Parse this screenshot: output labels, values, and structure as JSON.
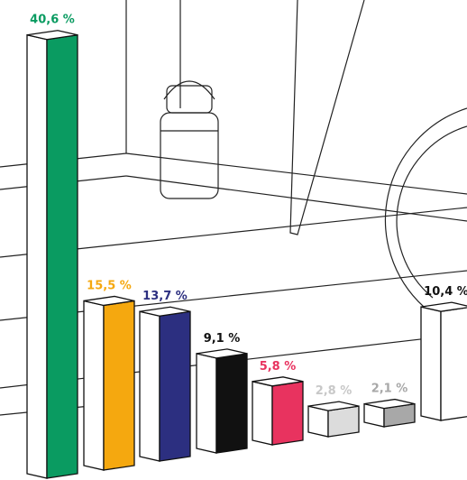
{
  "chart_data": {
    "type": "bar",
    "categories": [
      null,
      null,
      null,
      null,
      null,
      null,
      null,
      null
    ],
    "values": [
      40.6,
      15.5,
      13.7,
      9.1,
      5.8,
      2.8,
      2.1,
      10.4
    ],
    "value_labels": [
      "40,6 %",
      "15,5 %",
      "13,7 %",
      "9,1 %",
      "5,8 %",
      "2,8 %",
      "2,1 %",
      "10,4 %"
    ],
    "colors": [
      "#0a9b61",
      "#f5a80f",
      "#2c2f80",
      "#111111",
      "#e8335f",
      "#dcdcdc",
      "#a8a8a8",
      "#ffffff"
    ],
    "label_colors": [
      "#0a9b61",
      "#f5a80f",
      "#2c2f80",
      "#111111",
      "#e8335f",
      "#c8c8c8",
      "#a8a8a8",
      "#111111"
    ]
  }
}
